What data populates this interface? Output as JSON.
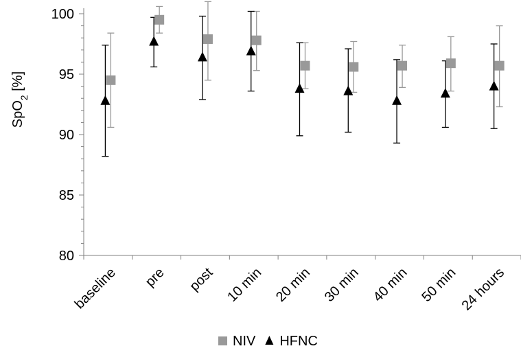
{
  "chart_data": {
    "type": "scatter",
    "ylabel_main": "SpO",
    "ylabel_sub": "2",
    "ylabel_tail": " [%]",
    "ylim": [
      80,
      100
    ],
    "yticks": [
      80,
      85,
      90,
      95,
      100
    ],
    "categories": [
      "baseline",
      "pre",
      "post",
      "10 min",
      "20 min",
      "30 min",
      "40 min",
      "50 min",
      "24 hours"
    ],
    "legend_position": "bottom",
    "grid": false,
    "series": [
      {
        "name": "NIV",
        "marker": "square",
        "color": "#999999",
        "errorbar_color": "#999999",
        "values": [
          94.5,
          99.5,
          97.9,
          97.8,
          95.7,
          95.6,
          95.7,
          95.9,
          95.7
        ],
        "error_high": [
          98.4,
          100.6,
          101.0,
          100.2,
          97.6,
          97.7,
          97.4,
          98.1,
          99.0
        ],
        "error_low": [
          90.6,
          98.4,
          94.5,
          95.3,
          93.8,
          93.5,
          93.9,
          93.6,
          92.3
        ]
      },
      {
        "name": "HFNC",
        "marker": "triangle",
        "color": "#000000",
        "errorbar_color": "#000000",
        "values": [
          92.8,
          97.7,
          96.4,
          96.9,
          93.8,
          93.6,
          92.8,
          93.4,
          94.0
        ],
        "error_high": [
          97.4,
          99.7,
          99.8,
          100.2,
          97.6,
          97.1,
          96.2,
          96.1,
          97.5
        ],
        "error_low": [
          88.2,
          95.6,
          92.9,
          93.6,
          89.9,
          90.2,
          89.3,
          90.6,
          90.5
        ]
      }
    ]
  }
}
